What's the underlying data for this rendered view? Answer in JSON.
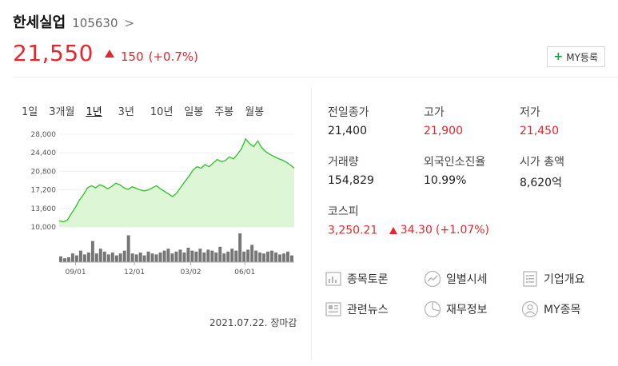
{
  "stock": {
    "name": "한세실업",
    "code": "105630",
    "chevron": ">"
  },
  "price": {
    "current": "21,550",
    "change": "150",
    "change_pct": "(+0.7%)"
  },
  "my_button": {
    "plus": "+",
    "label": "MY등록"
  },
  "periods": [
    "1일",
    "3개월",
    "1년",
    "3년",
    "10년",
    "일봉",
    "주봉",
    "월봉"
  ],
  "active_period": "1년",
  "chart_data": {
    "type": "area",
    "x_ticks": [
      "09/01",
      "12/01",
      "03/02",
      "06/01"
    ],
    "y_ticks": [
      "28,000",
      "24,400",
      "20,800",
      "17,200",
      "13,600",
      "10,000"
    ],
    "ylim": [
      10000,
      28000
    ],
    "series": [
      {
        "values": [
          11200,
          11000,
          11300,
          12600,
          13800,
          15200,
          16300,
          17600,
          18000,
          17600,
          18200,
          17900,
          17400,
          17900,
          18500,
          18200,
          17600,
          17300,
          17800,
          17500,
          17200,
          17000,
          17200,
          17600,
          18000,
          17400,
          16900,
          16400,
          15900,
          16600,
          17700,
          18800,
          19800,
          21000,
          21700,
          21400,
          22100,
          21700,
          22400,
          23100,
          22700,
          22900,
          23600,
          23200,
          24100,
          25200,
          27100,
          26200,
          25600,
          26700,
          25400,
          24600,
          24100,
          23700,
          23300,
          23000,
          22600,
          22100,
          21400
        ]
      }
    ],
    "volume": [
      6,
      4,
      5,
      9,
      7,
      12,
      8,
      10,
      22,
      9,
      14,
      11,
      8,
      10,
      7,
      9,
      12,
      28,
      9,
      8,
      10,
      7,
      11,
      9,
      8,
      10,
      12,
      14,
      9,
      11,
      13,
      10,
      15,
      12,
      11,
      14,
      10,
      13,
      12,
      10,
      16,
      9,
      11,
      14,
      12,
      30,
      11,
      13,
      18,
      12,
      10,
      9,
      11,
      12,
      10,
      8,
      9,
      11,
      7
    ]
  },
  "date_note": "2021.07.22. 장마감",
  "info": {
    "prev_close": {
      "label": "전일종가",
      "value": "21,400"
    },
    "high": {
      "label": "고가",
      "value": "21,900"
    },
    "low": {
      "label": "저가",
      "value": "21,450"
    },
    "volume": {
      "label": "거래량",
      "value": "154,829"
    },
    "foreign": {
      "label": "외국인소진율",
      "value": "10.99%"
    },
    "market_cap": {
      "label": "시가 총액",
      "value": "8,620억"
    },
    "kospi": {
      "label": "코스피",
      "value": "3,250.21",
      "change": "34.30",
      "change_pct": "(+1.07%)"
    }
  },
  "menu": {
    "discussion": "종목토론",
    "daily": "일별시세",
    "company": "기업개요",
    "news": "관련뉴스",
    "finance": "재무정보",
    "my": "MY종목"
  },
  "colors": {
    "red": "#e8252d",
    "area_fill": "#ddf6d6",
    "area_line": "#3bc234",
    "green": "#13a538"
  },
  "icons": [
    "bar-chart-icon",
    "trend-circle-icon",
    "list-doc-icon",
    "news-doc-icon",
    "pie-chart-icon",
    "person-circle-icon"
  ]
}
